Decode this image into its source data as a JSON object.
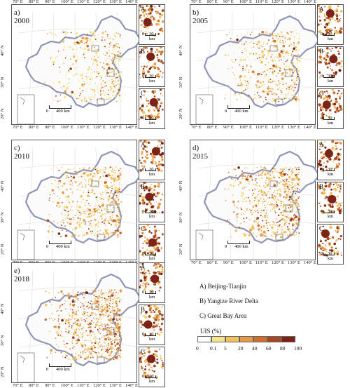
{
  "panels": [
    {
      "title": "a) 2000"
    },
    {
      "title": "b) 2005"
    },
    {
      "title": "c) 2010"
    },
    {
      "title": "d) 2015"
    },
    {
      "title": "e) 2018"
    }
  ],
  "lon_ticks": [
    "70° E",
    "80° E",
    "90° E",
    "100° E",
    "110° E",
    "120° E",
    "130° E",
    "140° E"
  ],
  "lat_ticks": [
    "40° N",
    "30° N",
    "20° N"
  ],
  "inset_letters": [
    "A",
    "B",
    "C"
  ],
  "main_scale": "400 km",
  "inset_scale": "30 km",
  "scale_zero": "0",
  "legend": {
    "regions": [
      "A) Beijing-Tianjin",
      "B) Yangtze River Delta",
      "C) Great Bay Area"
    ],
    "cbar_title": "UIS (%)",
    "cbar_labels": [
      "0",
      "0.1",
      "5",
      "20",
      "40",
      "60",
      "80",
      "100"
    ],
    "cbar_colors": [
      "#ffffff",
      "#f6e38a",
      "#f2c15e",
      "#e79a45",
      "#d0702f",
      "#a84722",
      "#7a2316"
    ]
  }
}
